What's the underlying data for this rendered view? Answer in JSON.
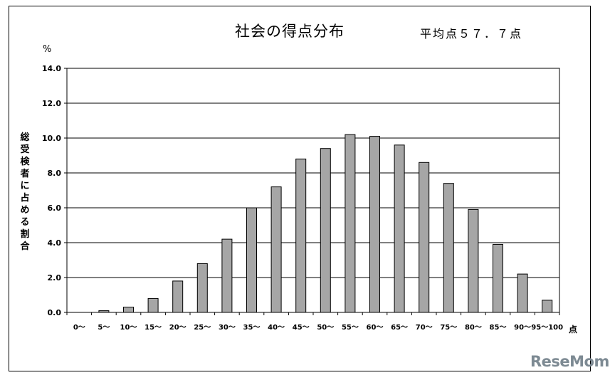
{
  "chart_data": {
    "type": "bar",
    "title": "社会の得点分布",
    "subtitle": "平均点５７．７点",
    "y_unit": "%",
    "ylabel": "総受検者に占める割合",
    "x_unit": "点",
    "ylim": [
      0,
      14
    ],
    "yticks": [
      "0.0",
      "2.0",
      "4.0",
      "6.0",
      "8.0",
      "10.0",
      "12.0",
      "14.0"
    ],
    "grid": true,
    "categories": [
      "0～",
      "5～",
      "10～",
      "15～",
      "20～",
      "25～",
      "30～",
      "35～",
      "40～",
      "45～",
      "50～",
      "55～",
      "60～",
      "65～",
      "70～",
      "75～",
      "80～",
      "85～",
      "90～",
      "95～100"
    ],
    "values": [
      0.0,
      0.1,
      0.3,
      0.8,
      1.8,
      2.8,
      4.2,
      6.0,
      7.2,
      8.8,
      9.4,
      10.2,
      10.1,
      9.6,
      8.6,
      7.4,
      5.9,
      3.9,
      2.2,
      0.7
    ],
    "bar_color": "#a6a6a6"
  },
  "watermark": "ReseMom"
}
